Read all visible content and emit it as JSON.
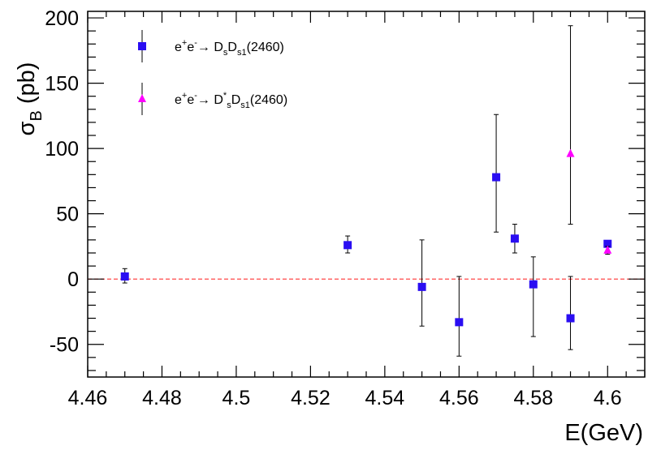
{
  "chart_data": {
    "type": "scatter",
    "xlabel": "E(GeV)",
    "ylabel": {
      "main": "σ",
      "sub": "B",
      "unit": " (pb)"
    },
    "xlim": [
      4.46,
      4.61
    ],
    "ylim": [
      -75,
      205
    ],
    "x_ticks": [
      {
        "value": 4.46,
        "label": "4.46"
      },
      {
        "value": 4.48,
        "label": "4.48"
      },
      {
        "value": 4.5,
        "label": "4.5"
      },
      {
        "value": 4.52,
        "label": "4.52"
      },
      {
        "value": 4.54,
        "label": "4.54"
      },
      {
        "value": 4.56,
        "label": "4.56"
      },
      {
        "value": 4.58,
        "label": "4.58"
      },
      {
        "value": 4.6,
        "label": "4.6"
      }
    ],
    "y_ticks": [
      {
        "value": -50,
        "label": "-50"
      },
      {
        "value": 0,
        "label": "0"
      },
      {
        "value": 50,
        "label": "50"
      },
      {
        "value": 100,
        "label": "100"
      },
      {
        "value": 150,
        "label": "150"
      },
      {
        "value": 200,
        "label": "200"
      }
    ],
    "reference_line": {
      "y": 0,
      "style": "dashed",
      "color": "#ff3333"
    },
    "series": [
      {
        "name": "e+e- → DsDs1(2460)",
        "legend_parts": [
          {
            "t": "e",
            "s": "n"
          },
          {
            "t": "+",
            "s": "sup"
          },
          {
            "t": "e",
            "s": "n"
          },
          {
            "t": "-",
            "s": "sup"
          },
          {
            "t": "→ D",
            "s": "n"
          },
          {
            "t": "s",
            "s": "sub"
          },
          {
            "t": "D",
            "s": "n"
          },
          {
            "t": "s1",
            "s": "sub"
          },
          {
            "t": "(2460)",
            "s": "n"
          }
        ],
        "marker": "square",
        "color": "#2a0ef2",
        "points": [
          {
            "x": 4.47,
            "y": 2,
            "ylo": -3,
            "yhi": 8
          },
          {
            "x": 4.53,
            "y": 26,
            "ylo": 20,
            "yhi": 33
          },
          {
            "x": 4.55,
            "y": -6,
            "ylo": -36,
            "yhi": 30
          },
          {
            "x": 4.56,
            "y": -33,
            "ylo": -59,
            "yhi": 2
          },
          {
            "x": 4.57,
            "y": 78,
            "ylo": 36,
            "yhi": 126
          },
          {
            "x": 4.575,
            "y": 31,
            "ylo": 20,
            "yhi": 42
          },
          {
            "x": 4.58,
            "y": -4,
            "ylo": -44,
            "yhi": 17
          },
          {
            "x": 4.59,
            "y": -30,
            "ylo": -54,
            "yhi": 2
          },
          {
            "x": 4.6,
            "y": 27,
            "ylo": 25,
            "yhi": 29
          }
        ]
      },
      {
        "name": "e+e- → Ds*Ds1(2460)",
        "legend_parts": [
          {
            "t": "e",
            "s": "n"
          },
          {
            "t": "+",
            "s": "sup"
          },
          {
            "t": "e",
            "s": "n"
          },
          {
            "t": "-",
            "s": "sup"
          },
          {
            "t": "→ D",
            "s": "n"
          },
          {
            "t": "*",
            "s": "sup"
          },
          {
            "t": "s",
            "s": "sub"
          },
          {
            "t": "D",
            "s": "n"
          },
          {
            "t": "s1",
            "s": "sub"
          },
          {
            "t": "(2460)",
            "s": "n"
          }
        ],
        "marker": "triangle",
        "color": "#ff00ff",
        "points": [
          {
            "x": 4.59,
            "y": 96,
            "ylo": 42,
            "yhi": 194
          },
          {
            "x": 4.6,
            "y": 22,
            "ylo": 19,
            "yhi": 25
          }
        ]
      }
    ],
    "legend_position": "top-left"
  }
}
